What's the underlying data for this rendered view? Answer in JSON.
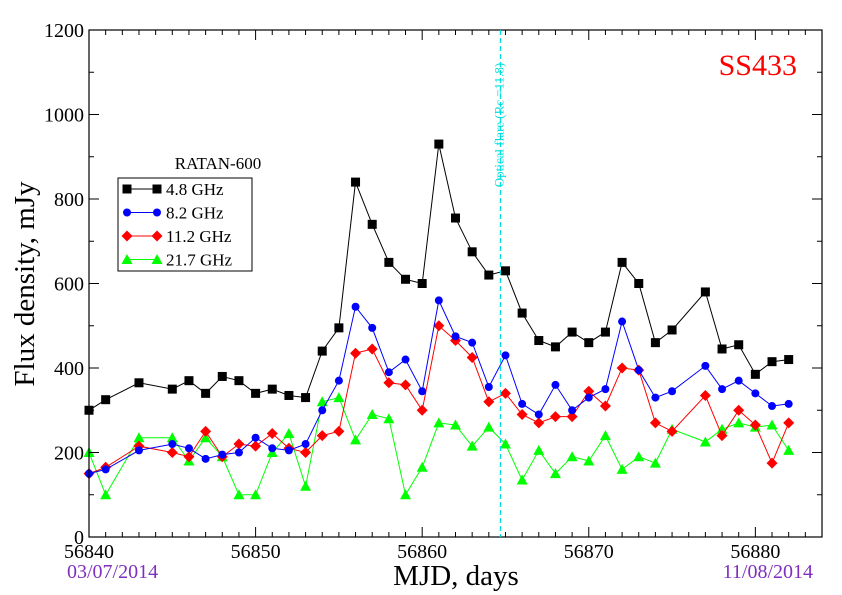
{
  "chart_data": {
    "type": "line",
    "xlabel": "MJD, days",
    "ylabel": "Flux density, mJy",
    "xlim": [
      56840,
      56884
    ],
    "ylim": [
      0,
      1200
    ],
    "x_ticks": [
      "56840",
      "56850",
      "56860",
      "56870",
      "56880"
    ],
    "y_ticks": [
      "0",
      "200",
      "400",
      "600",
      "800",
      "1000",
      "1200"
    ],
    "grid": false,
    "legend_title": "RATAN-600",
    "legend_position": "upper-left",
    "source_label": "SS433",
    "start_date": "03/07/2014",
    "end_date": "11/08/2014",
    "annotation": {
      "label": "Optical flare (Rc =11.8)",
      "mjd": 56864.7
    },
    "series": [
      {
        "name": "4.8 GHz",
        "color": "#000000",
        "marker": "square",
        "x": [
          56840,
          56841,
          56843,
          56845,
          56846,
          56847,
          56848,
          56849,
          56850,
          56851,
          56852,
          56853,
          56854,
          56855,
          56856,
          56857,
          56858,
          56859,
          56860,
          56861,
          56862,
          56863,
          56864,
          56865,
          56866,
          56867,
          56868,
          56869,
          56870,
          56871,
          56872,
          56873,
          56874,
          56875,
          56877,
          56878,
          56879,
          56880,
          56881,
          56882
        ],
        "y": [
          300,
          325,
          365,
          350,
          370,
          340,
          380,
          370,
          340,
          350,
          335,
          330,
          440,
          495,
          840,
          740,
          650,
          610,
          600,
          930,
          755,
          675,
          620,
          630,
          530,
          465,
          450,
          485,
          460,
          485,
          650,
          600,
          460,
          490,
          580,
          445,
          455,
          385,
          415,
          420
        ]
      },
      {
        "name": "8.2 GHz",
        "color": "#0000ff",
        "marker": "circle",
        "x": [
          56840,
          56841,
          56843,
          56845,
          56846,
          56847,
          56848,
          56849,
          56850,
          56851,
          56852,
          56853,
          56854,
          56855,
          56856,
          56857,
          56858,
          56859,
          56860,
          56861,
          56862,
          56863,
          56864,
          56865,
          56866,
          56867,
          56868,
          56869,
          56870,
          56871,
          56872,
          56873,
          56874,
          56875,
          56877,
          56878,
          56879,
          56880,
          56881,
          56882
        ],
        "y": [
          150,
          160,
          205,
          220,
          210,
          185,
          195,
          200,
          235,
          210,
          205,
          220,
          300,
          370,
          545,
          495,
          390,
          420,
          345,
          560,
          475,
          460,
          355,
          430,
          315,
          290,
          360,
          300,
          330,
          350,
          510,
          395,
          330,
          345,
          405,
          350,
          370,
          340,
          310,
          315
        ]
      },
      {
        "name": "11.2 GHz",
        "color": "#ff0000",
        "marker": "diamond",
        "x": [
          56840,
          56841,
          56843,
          56845,
          56846,
          56847,
          56848,
          56849,
          56850,
          56851,
          56852,
          56853,
          56854,
          56855,
          56856,
          56857,
          56858,
          56859,
          56860,
          56861,
          56862,
          56863,
          56864,
          56865,
          56866,
          56867,
          56868,
          56869,
          56870,
          56871,
          56872,
          56873,
          56874,
          56875,
          56877,
          56878,
          56879,
          56880,
          56881,
          56882
        ],
        "y": [
          150,
          165,
          215,
          200,
          190,
          250,
          190,
          220,
          215,
          245,
          210,
          200,
          240,
          250,
          435,
          445,
          365,
          360,
          300,
          500,
          465,
          425,
          320,
          340,
          290,
          270,
          285,
          285,
          345,
          310,
          400,
          395,
          270,
          250,
          335,
          240,
          300,
          265,
          175,
          270
        ]
      },
      {
        "name": "21.7 GHz",
        "color": "#00ff00",
        "marker": "triangle",
        "x": [
          56840,
          56841,
          56843,
          56845,
          56846,
          56847,
          56848,
          56849,
          56850,
          56851,
          56852,
          56853,
          56854,
          56855,
          56856,
          56857,
          56858,
          56859,
          56860,
          56861,
          56862,
          56863,
          56864,
          56865,
          56866,
          56867,
          56868,
          56869,
          56870,
          56871,
          56872,
          56873,
          56874,
          56875,
          56877,
          56878,
          56879,
          56880,
          56881,
          56882
        ],
        "y": [
          200,
          100,
          235,
          235,
          180,
          235,
          190,
          100,
          100,
          200,
          245,
          120,
          320,
          330,
          230,
          290,
          280,
          100,
          165,
          270,
          265,
          215,
          260,
          220,
          135,
          205,
          150,
          190,
          180,
          240,
          160,
          190,
          175,
          255,
          225,
          255,
          270,
          260,
          265,
          205
        ]
      }
    ]
  }
}
